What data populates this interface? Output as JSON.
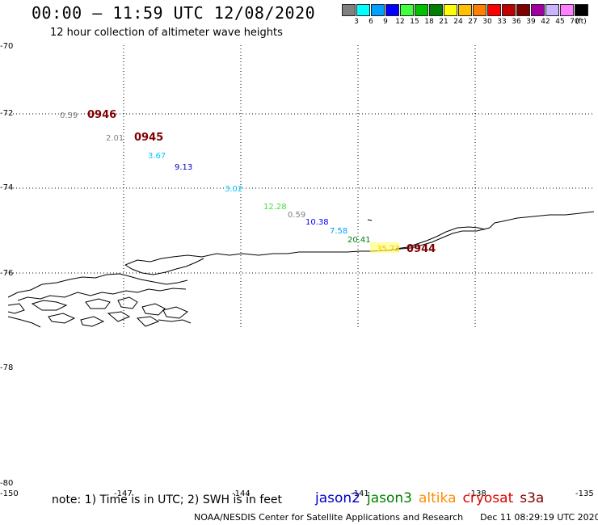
{
  "header": {
    "title": "00:00 – 11:59 UTC 12/08/2020",
    "subtitle": "12 hour collection of altimeter wave heights"
  },
  "legend": {
    "colors": [
      "#808080",
      "#00ffff",
      "#00a0ff",
      "#0000ff",
      "#40ff40",
      "#00c000",
      "#008000",
      "#ffff00",
      "#ffc000",
      "#ff8000",
      "#ff0000",
      "#c00000",
      "#800000",
      "#a000a0",
      "#c8b4ff",
      "#ff80ff",
      "#000000"
    ],
    "labels": [
      "3",
      "6",
      "9",
      "12",
      "15",
      "18",
      "21",
      "24",
      "27",
      "30",
      "33",
      "36",
      "39",
      "42",
      "45",
      "70"
    ],
    "unit": "(ft)"
  },
  "axes": {
    "y_labels": [
      "-70",
      "-72",
      "-74",
      "-76",
      "-78",
      "-80"
    ],
    "x_labels": [
      "-150",
      "-147",
      "-144",
      "-141",
      "-138",
      "-135"
    ]
  },
  "map": {
    "time_labels": [
      {
        "text": "0946",
        "color": "#800000"
      },
      {
        "text": "0945",
        "color": "#800000"
      },
      {
        "text": "0944",
        "color": "#800000"
      }
    ],
    "observations": [
      {
        "text": "0.59",
        "color": "#808080"
      },
      {
        "text": "2.01",
        "color": "#808080"
      },
      {
        "text": "3.67",
        "color": "#00c8ff"
      },
      {
        "text": "9.13",
        "color": "#0000c0"
      },
      {
        "text": "3.02",
        "color": "#00c8ff"
      },
      {
        "text": "12.28",
        "color": "#40e040"
      },
      {
        "text": "0.59",
        "color": "#808080"
      },
      {
        "text": "10.38",
        "color": "#0000ff"
      },
      {
        "text": "7.58",
        "color": "#00a0ff"
      },
      {
        "text": "20.41",
        "color": "#008000"
      },
      {
        "text": "35.73",
        "color": "#ffc000"
      }
    ]
  },
  "footer": {
    "note": "note: 1) Time is in UTC; 2) SWH is in feet",
    "satellites": [
      {
        "name": "jason2",
        "color": "#0000cc"
      },
      {
        "name": "jason3",
        "color": "#008000"
      },
      {
        "name": "altika",
        "color": "#ff8c00"
      },
      {
        "name": "cryosat",
        "color": "#e00000"
      },
      {
        "name": "s3a",
        "color": "#800000"
      }
    ],
    "credit": "NOAA/NESDIS Center for Satellite Applications and Research",
    "timestamp": "Dec 11 08:29:19 UTC 2020"
  }
}
